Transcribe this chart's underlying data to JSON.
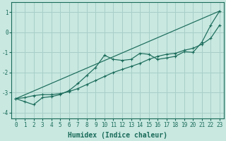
{
  "xlabel": "Humidex (Indice chaleur)",
  "ylabel": "",
  "background_color": "#c8e8e0",
  "grid_color": "#a8cfc8",
  "line_color": "#1a6b5a",
  "xlim": [
    -0.5,
    23.5
  ],
  "ylim": [
    -4.3,
    1.5
  ],
  "yticks": [
    -4,
    -3,
    -2,
    -1,
    0,
    1
  ],
  "xticks": [
    0,
    1,
    2,
    3,
    4,
    5,
    6,
    7,
    8,
    9,
    10,
    11,
    12,
    13,
    14,
    15,
    16,
    17,
    18,
    19,
    20,
    21,
    22,
    23
  ],
  "line1_x": [
    0,
    1,
    2,
    3,
    4,
    5,
    6,
    7,
    8,
    9,
    10,
    11,
    12,
    13,
    14,
    15,
    16,
    17,
    18,
    19,
    20,
    21,
    22,
    23
  ],
  "line1_y": [
    -3.3,
    -3.45,
    -3.6,
    -3.25,
    -3.2,
    -3.1,
    -2.9,
    -2.55,
    -2.15,
    -1.75,
    -1.15,
    -1.35,
    -1.4,
    -1.35,
    -1.05,
    -1.1,
    -1.35,
    -1.28,
    -1.2,
    -0.97,
    -1.0,
    -0.5,
    0.35,
    1.05
  ],
  "line2_x": [
    0,
    1,
    2,
    3,
    4,
    5,
    6,
    7,
    8,
    9,
    10,
    11,
    12,
    13,
    14,
    15,
    16,
    17,
    18,
    19,
    20,
    21,
    22,
    23
  ],
  "line2_y": [
    -3.3,
    -3.25,
    -3.15,
    -3.1,
    -3.1,
    -3.05,
    -2.95,
    -2.8,
    -2.6,
    -2.4,
    -2.2,
    -2.0,
    -1.85,
    -1.7,
    -1.55,
    -1.35,
    -1.2,
    -1.1,
    -1.05,
    -0.9,
    -0.8,
    -0.6,
    -0.3,
    0.35
  ],
  "line3_x": [
    0,
    23
  ],
  "line3_y": [
    -3.3,
    1.05
  ],
  "tick_fontsize": 5.5,
  "label_fontsize": 7.0
}
